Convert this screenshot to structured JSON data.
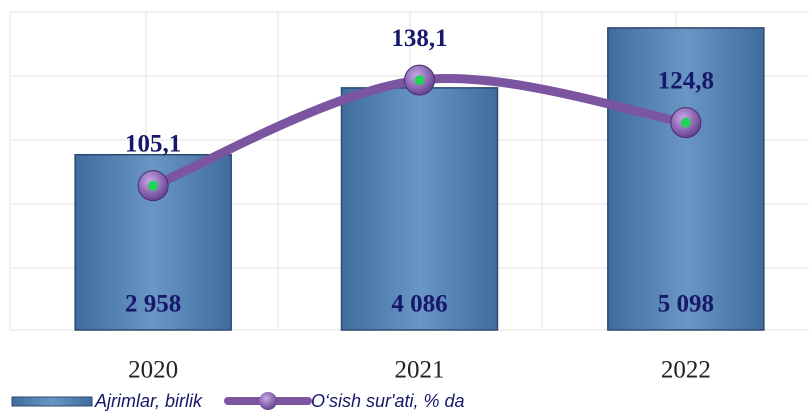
{
  "chart_data": {
    "type": "combo",
    "categories": [
      "2020",
      "2021",
      "2022"
    ],
    "series": [
      {
        "name": "Ajrimlar, birlik",
        "type": "bar",
        "color": "#4f7eb0",
        "values": [
          2958,
          4086,
          5098
        ],
        "value_labels": [
          "2 958",
          "4 086",
          "5 098"
        ]
      },
      {
        "name": "O‘sish sur'ati, % da",
        "type": "line",
        "axis": "y2",
        "color": "#7b55a0",
        "values": [
          105.1,
          138.1,
          124.8
        ],
        "value_labels": [
          "105,1",
          "138,1",
          "124,8"
        ]
      }
    ],
    "ylim": [
      0,
      5400
    ],
    "y2lim": [
      60,
      160
    ],
    "grid": true,
    "legend": "bottom"
  }
}
